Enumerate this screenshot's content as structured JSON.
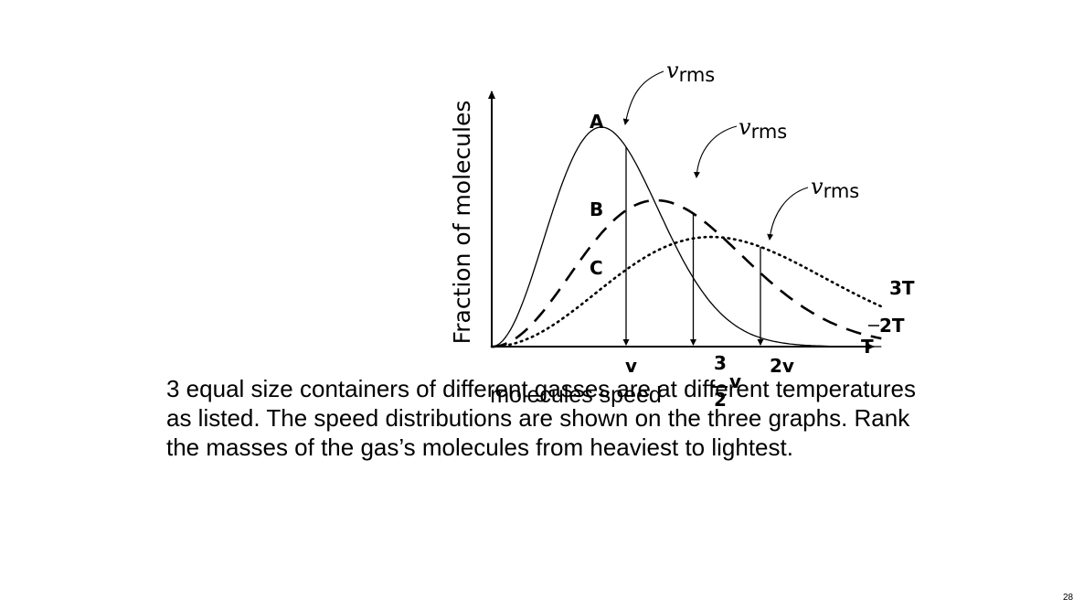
{
  "chart_data": {
    "type": "line",
    "xlabel": "molecules  speed",
    "ylabel": "Fraction of molecules",
    "grid": false,
    "x_tick_labels": [
      {
        "x": 1.0,
        "label": "v"
      },
      {
        "x": 1.5,
        "label_numerator": "3",
        "label_denominator": "2",
        "label_var": "v"
      },
      {
        "x": 2.0,
        "label": "2v"
      }
    ],
    "series": [
      {
        "name": "T",
        "curve_label": "A",
        "style": "solid",
        "peak_speed": 0.816,
        "rms_speed": 1.0
      },
      {
        "name": "2T",
        "curve_label": "B",
        "style": "dashed",
        "peak_speed": 1.224,
        "rms_speed": 1.5
      },
      {
        "name": "3T",
        "curve_label": "C",
        "style": "dotted",
        "peak_speed": 1.633,
        "rms_speed": 2.0
      }
    ],
    "annotations": [
      {
        "text_var": "v",
        "text_sub": "rms",
        "target_speed": 1.0
      },
      {
        "text_var": "v",
        "text_sub": "rms",
        "target_speed": 1.5
      },
      {
        "text_var": "v",
        "text_sub": "rms",
        "target_speed": 2.0
      }
    ]
  },
  "question": {
    "lines": [
      "3 equal size containers of different gasses are at different temperatures",
      "as listed. The speed distributions are shown on the three graphs. Rank",
      "the masses of the gas’s molecules from heaviest to lightest."
    ]
  },
  "page_number": "28"
}
